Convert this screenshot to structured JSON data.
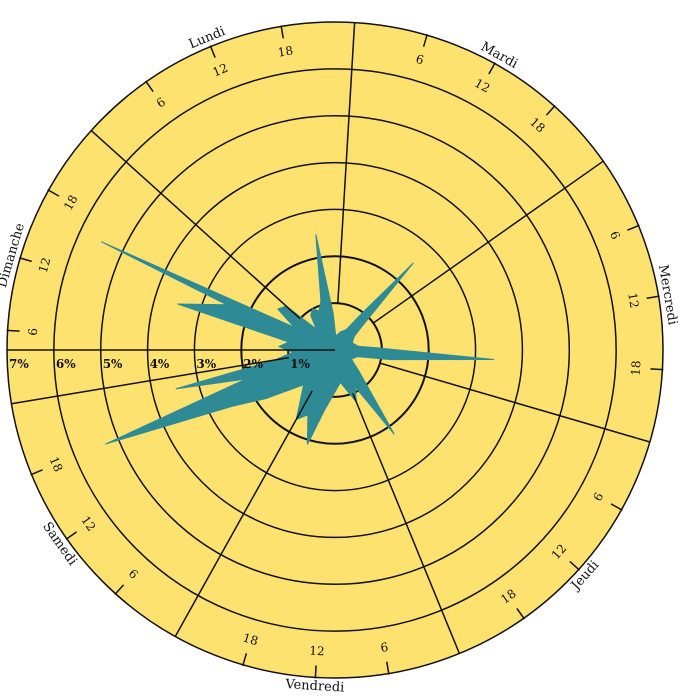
{
  "chart_data": {
    "type": "radar",
    "title": "",
    "radial_scale": {
      "unit": "%",
      "max": 7,
      "rings": [
        1,
        2,
        3,
        4,
        5,
        6,
        7
      ],
      "ring_labels": [
        "1%",
        "2%",
        "3%",
        "4%",
        "5%",
        "6%",
        "7%"
      ]
    },
    "days": [
      "Lundi",
      "Mardi",
      "Mercredi",
      "Jeudi",
      "Vendredi",
      "Samedi",
      "Dimanche"
    ],
    "hour_ticks": [
      "6",
      "12",
      "18"
    ],
    "series": [
      {
        "color": "#2e8a94",
        "points": [
          {
            "day": "Lundi",
            "hour": 0,
            "value": 1.4
          },
          {
            "day": "Lundi",
            "hour": 3,
            "value": 0.6
          },
          {
            "day": "Lundi",
            "hour": 6,
            "value": 0.9
          },
          {
            "day": "Lundi",
            "hour": 9,
            "value": 1.0
          },
          {
            "day": "Lundi",
            "hour": 12,
            "value": 0.9
          },
          {
            "day": "Lundi",
            "hour": 15,
            "value": 1.1
          },
          {
            "day": "Lundi",
            "hour": 18,
            "value": 2.5
          },
          {
            "day": "Lundi",
            "hour": 21,
            "value": 0.8
          },
          {
            "day": "Mardi",
            "hour": 0,
            "value": 0.3
          },
          {
            "day": "Mardi",
            "hour": 6,
            "value": 0.4
          },
          {
            "day": "Mardi",
            "hour": 12,
            "value": 0.5
          },
          {
            "day": "Mardi",
            "hour": 15,
            "value": 0.9
          },
          {
            "day": "Mardi",
            "hour": 18,
            "value": 2.5
          },
          {
            "day": "Mardi",
            "hour": 21,
            "value": 0.8
          },
          {
            "day": "Mercredi",
            "hour": 0,
            "value": 0.5
          },
          {
            "day": "Mercredi",
            "hour": 6,
            "value": 0.4
          },
          {
            "day": "Mercredi",
            "hour": 12,
            "value": 0.5
          },
          {
            "day": "Mercredi",
            "hour": 15,
            "value": 0.9
          },
          {
            "day": "Mercredi",
            "hour": 18,
            "value": 3.4
          },
          {
            "day": "Mercredi",
            "hour": 21,
            "value": 1.2
          },
          {
            "day": "Jeudi",
            "hour": 0,
            "value": 0.5
          },
          {
            "day": "Jeudi",
            "hour": 6,
            "value": 0.4
          },
          {
            "day": "Jeudi",
            "hour": 12,
            "value": 0.7
          },
          {
            "day": "Jeudi",
            "hour": 18,
            "value": 2.2
          },
          {
            "day": "Jeudi",
            "hour": 21,
            "value": 0.9
          },
          {
            "day": "Vendredi",
            "hour": 0,
            "value": 1.2
          },
          {
            "day": "Vendredi",
            "hour": 6,
            "value": 0.7
          },
          {
            "day": "Vendredi",
            "hour": 12,
            "value": 1.0
          },
          {
            "day": "Vendredi",
            "hour": 15,
            "value": 1.3
          },
          {
            "day": "Vendredi",
            "hour": 18,
            "value": 2.1
          },
          {
            "day": "Vendredi",
            "hour": 21,
            "value": 1.5
          },
          {
            "day": "Samedi",
            "hour": 0,
            "value": 1.7
          },
          {
            "day": "Samedi",
            "hour": 6,
            "value": 1.0
          },
          {
            "day": "Samedi",
            "hour": 12,
            "value": 1.8
          },
          {
            "day": "Samedi",
            "hour": 15,
            "value": 2.5
          },
          {
            "day": "Samedi",
            "hour": 18,
            "value": 5.3
          },
          {
            "day": "Samedi",
            "hour": 20,
            "value": 2.0
          },
          {
            "day": "Samedi",
            "hour": 22,
            "value": 3.5
          },
          {
            "day": "Dimanche",
            "hour": 0,
            "value": 1.3
          },
          {
            "day": "Dimanche",
            "hour": 3,
            "value": 0.9
          },
          {
            "day": "Dimanche",
            "hour": 6,
            "value": 1.2
          },
          {
            "day": "Dimanche",
            "hour": 9,
            "value": 1.0
          },
          {
            "day": "Dimanche",
            "hour": 12,
            "value": 3.5
          },
          {
            "day": "Dimanche",
            "hour": 15,
            "value": 2.5
          },
          {
            "day": "Dimanche",
            "hour": 16,
            "value": 5.5
          },
          {
            "day": "Dimanche",
            "hour": 18,
            "value": 1.0
          },
          {
            "day": "Dimanche",
            "hour": 21,
            "value": 1.5
          }
        ]
      }
    ],
    "grid": true,
    "legend": "none",
    "colors": {
      "background": "#fee270",
      "series": "#2e8a94",
      "grid": "#111111"
    }
  }
}
